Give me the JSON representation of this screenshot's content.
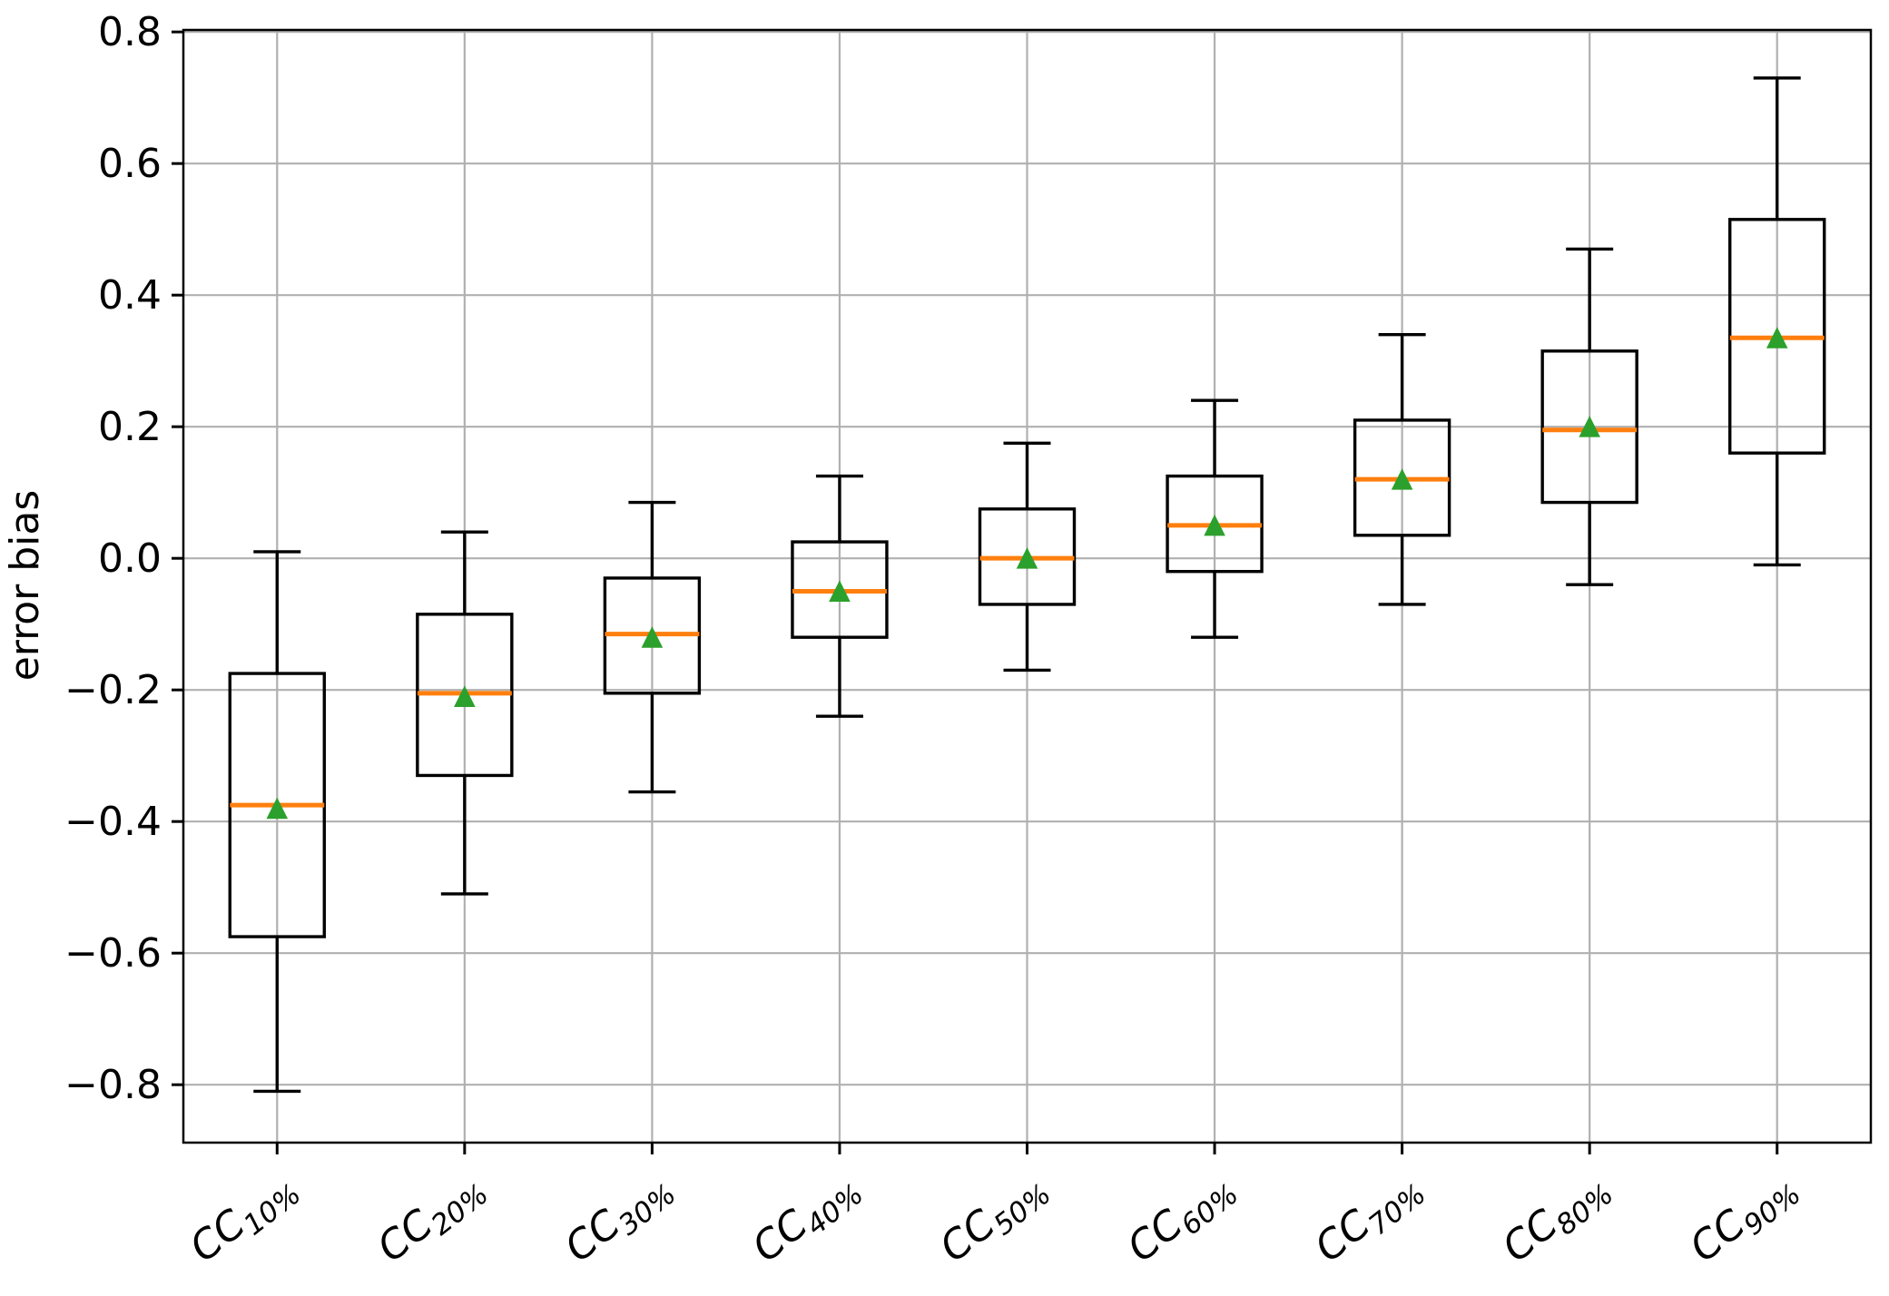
{
  "figure": {
    "background": "#ffffff"
  },
  "chart_data": {
    "type": "box",
    "title": "",
    "xlabel": "",
    "ylabel": "error bias",
    "ylim": [
      -0.888,
      0.803
    ],
    "yticks": [
      0.8,
      0.6,
      0.4,
      0.2,
      0.0,
      -0.2,
      -0.4,
      -0.6,
      -0.8
    ],
    "ytick_labels": [
      "0.8",
      "0.6",
      "0.4",
      "0.2",
      "0.0",
      "−0.2",
      "−0.4",
      "−0.6",
      "−0.8"
    ],
    "grid": true,
    "grid_axes": "both",
    "legend": "none",
    "categories": [
      "CC10%",
      "CC20%",
      "CC30%",
      "CC40%",
      "CC50%",
      "CC60%",
      "CC70%",
      "CC80%",
      "CC90%"
    ],
    "boxes": [
      {
        "label": "CC10%",
        "label_main": "CC",
        "label_sub": "10%",
        "whisker_low": -0.81,
        "q1": -0.575,
        "median": -0.375,
        "mean": -0.38,
        "q3": -0.175,
        "whisker_high": 0.01
      },
      {
        "label": "CC20%",
        "label_main": "CC",
        "label_sub": "20%",
        "whisker_low": -0.51,
        "q1": -0.33,
        "median": -0.205,
        "mean": -0.21,
        "q3": -0.085,
        "whisker_high": 0.04
      },
      {
        "label": "CC30%",
        "label_main": "CC",
        "label_sub": "30%",
        "whisker_low": -0.355,
        "q1": -0.205,
        "median": -0.115,
        "mean": -0.12,
        "q3": -0.03,
        "whisker_high": 0.085
      },
      {
        "label": "CC40%",
        "label_main": "CC",
        "label_sub": "40%",
        "whisker_low": -0.24,
        "q1": -0.12,
        "median": -0.05,
        "mean": -0.05,
        "q3": 0.025,
        "whisker_high": 0.125
      },
      {
        "label": "CC50%",
        "label_main": "CC",
        "label_sub": "50%",
        "whisker_low": -0.17,
        "q1": -0.07,
        "median": 0.0,
        "mean": 0.0,
        "q3": 0.075,
        "whisker_high": 0.175
      },
      {
        "label": "CC60%",
        "label_main": "CC",
        "label_sub": "60%",
        "whisker_low": -0.12,
        "q1": -0.02,
        "median": 0.05,
        "mean": 0.05,
        "q3": 0.125,
        "whisker_high": 0.24
      },
      {
        "label": "CC70%",
        "label_main": "CC",
        "label_sub": "70%",
        "whisker_low": -0.07,
        "q1": 0.035,
        "median": 0.12,
        "mean": 0.12,
        "q3": 0.21,
        "whisker_high": 0.34
      },
      {
        "label": "CC80%",
        "label_main": "CC",
        "label_sub": "80%",
        "whisker_low": -0.04,
        "q1": 0.085,
        "median": 0.195,
        "mean": 0.2,
        "q3": 0.315,
        "whisker_high": 0.47
      },
      {
        "label": "CC90%",
        "label_main": "CC",
        "label_sub": "90%",
        "whisker_low": -0.01,
        "q1": 0.16,
        "median": 0.335,
        "mean": 0.335,
        "q3": 0.515,
        "whisker_high": 0.73
      }
    ],
    "colors": {
      "median": "#ff7f0e",
      "mean_marker": "#2ca02c",
      "box_edge": "#000000",
      "whisker": "#000000",
      "grid": "#b0b0b0",
      "frame": "#000000",
      "background": "#ffffff"
    }
  }
}
